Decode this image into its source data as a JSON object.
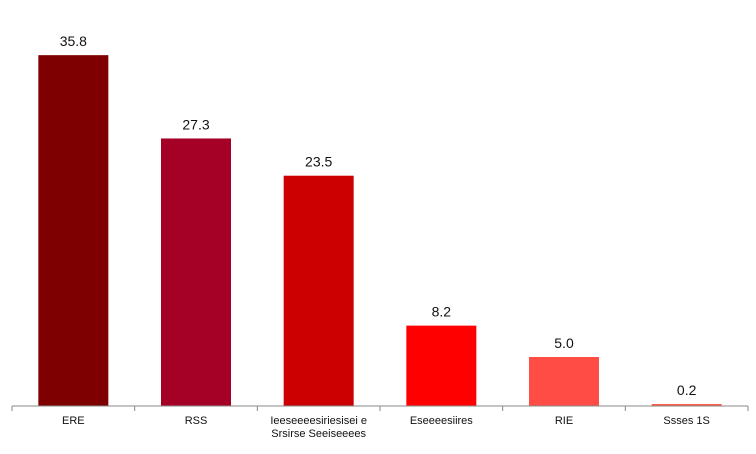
{
  "chart_data": {
    "type": "bar",
    "categories": [
      [
        "ERE"
      ],
      [
        "RSS"
      ],
      [
        "Ieeseeeesiriesisei e",
        "Srsirse Seeiseeees"
      ],
      [
        "Eseeeesiires"
      ],
      [
        "RIE"
      ],
      [
        "Ssses 1S"
      ]
    ],
    "values": [
      35.8,
      27.3,
      23.5,
      8.2,
      5.0,
      0.2
    ],
    "value_labels": [
      "35.8",
      "27.3",
      "23.5",
      "8.2",
      "5.0",
      "0.2"
    ],
    "bar_colors": [
      "#7f0000",
      "#a50026",
      "#cc0000",
      "#ff0000",
      "#ff4c44",
      "#ff5a4a"
    ],
    "ylim": [
      0,
      40
    ],
    "grid": false,
    "axis_color": "#888888"
  }
}
